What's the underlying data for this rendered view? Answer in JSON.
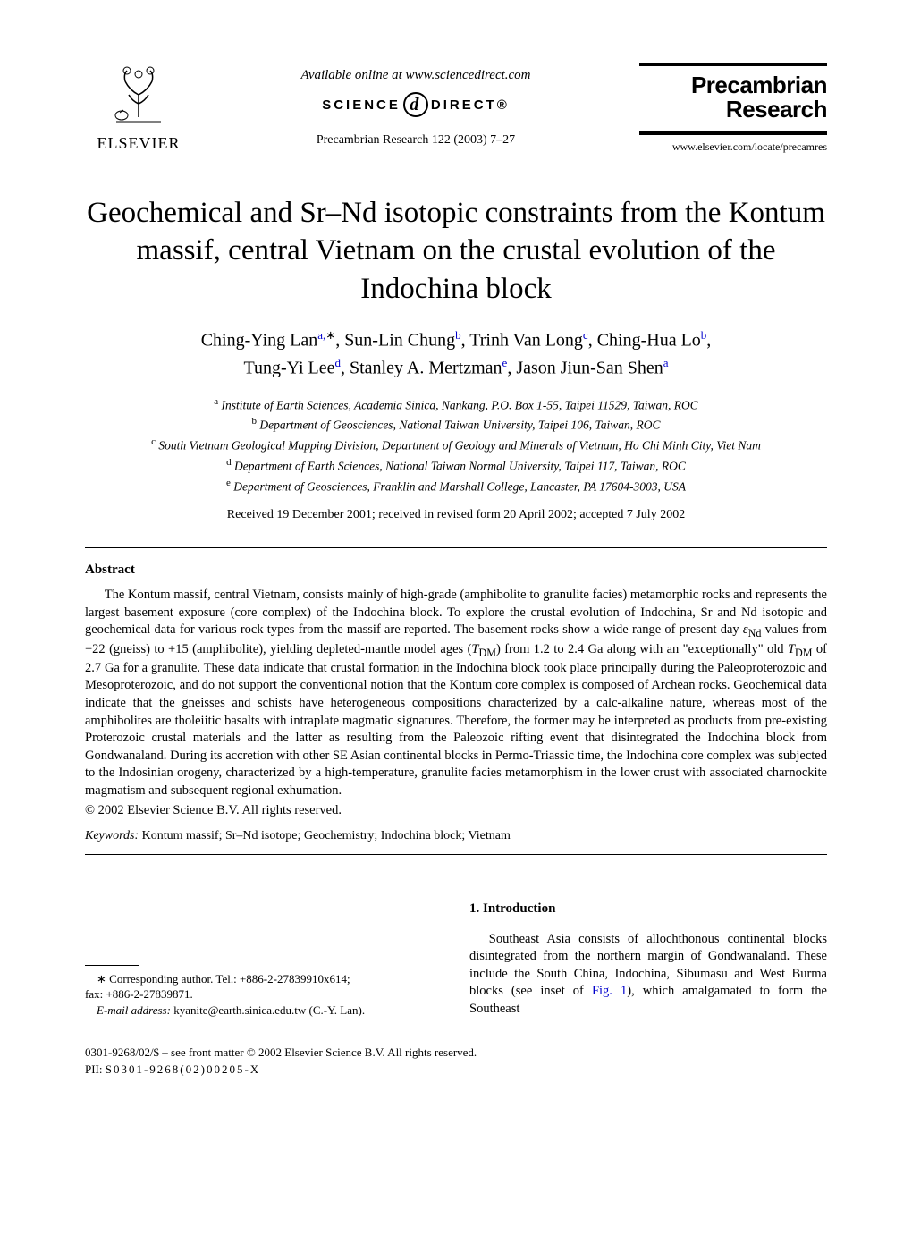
{
  "header": {
    "publisher": "ELSEVIER",
    "available_online": "Available online at www.sciencedirect.com",
    "science_label_left": "SCIENCE",
    "science_label_right": "DIRECT®",
    "citation": "Precambrian Research 122 (2003) 7–27",
    "journal_name_line1": "Precambrian",
    "journal_name_line2": "Research",
    "journal_url": "www.elsevier.com/locate/precamres"
  },
  "title": "Geochemical and Sr–Nd isotopic constraints from the Kontum massif, central Vietnam on the crustal evolution of the Indochina block",
  "authors": {
    "line1_html": "Ching-Ying Lan<sup>a,</sup><sup class=\"ast\">∗</sup>, Sun-Lin Chung<sup>b</sup>, Trinh Van Long<sup>c</sup>, Ching-Hua Lo<sup>b</sup>,",
    "line2_html": "Tung-Yi Lee<sup>d</sup>, Stanley A. Mertzman<sup>e</sup>, Jason Jiun-San Shen<sup>a</sup>"
  },
  "affiliations": [
    {
      "sup": "a",
      "text": "Institute of Earth Sciences, Academia Sinica, Nankang, P.O. Box 1-55, Taipei 11529, Taiwan, ROC"
    },
    {
      "sup": "b",
      "text": "Department of Geosciences, National Taiwan University, Taipei 106, Taiwan, ROC"
    },
    {
      "sup": "c",
      "text": "South Vietnam Geological Mapping Division, Department of Geology and Minerals of Vietnam, Ho Chi Minh City, Viet Nam"
    },
    {
      "sup": "d",
      "text": "Department of Earth Sciences, National Taiwan Normal University, Taipei 117, Taiwan, ROC"
    },
    {
      "sup": "e",
      "text": "Department of Geosciences, Franklin and Marshall College, Lancaster, PA 17604-3003, USA"
    }
  ],
  "received": "Received 19 December 2001; received in revised form 20 April 2002; accepted 7 July 2002",
  "abstract": {
    "heading": "Abstract",
    "body_html": "The Kontum massif, central Vietnam, consists mainly of high-grade (amphibolite to granulite facies) metamorphic rocks and represents the largest basement exposure (core complex) of the Indochina block. To explore the crustal evolution of Indochina, Sr and Nd isotopic and geochemical data for various rock types from the massif are reported. The basement rocks show a wide range of present day <i>ε</i><sub>Nd</sub> values from −22 (gneiss) to +15 (amphibolite), yielding depleted-mantle model ages (<i>T</i><sub>DM</sub>) from 1.2 to 2.4 Ga along with an \"exceptionally\" old <i>T</i><sub>DM</sub> of 2.7 Ga for a granulite. These data indicate that crustal formation in the Indochina block took place principally during the Paleoproterozoic and Mesoproterozoic, and do not support the conventional notion that the Kontum core complex is composed of Archean rocks. Geochemical data indicate that the gneisses and schists have heterogeneous compositions characterized by a calc-alkaline nature, whereas most of the amphibolites are tholeiitic basalts with intraplate magmatic signatures. Therefore, the former may be interpreted as products from pre-existing Proterozoic crustal materials and the latter as resulting from the Paleozoic rifting event that disintegrated the Indochina block from Gondwanaland. During its accretion with other SE Asian continental blocks in Permo-Triassic time, the Indochina core complex was subjected to the Indosinian orogeny, characterized by a high-temperature, granulite facies metamorphism in the lower crust with associated charnockite magmatism and subsequent regional exhumation.",
    "copyright": "© 2002 Elsevier Science B.V. All rights reserved."
  },
  "keywords": {
    "label": "Keywords:",
    "text": "Kontum massif; Sr–Nd isotope; Geochemistry; Indochina block; Vietnam"
  },
  "footnote": {
    "corr_line1": "∗ Corresponding author. Tel.: +886-2-27839910x614;",
    "corr_line2": "fax: +886-2-27839871.",
    "email_label": "E-mail address:",
    "email_value": "kyanite@earth.sinica.edu.tw (C.-Y. Lan)."
  },
  "introduction": {
    "heading": "1.  Introduction",
    "para_html": "Southeast Asia consists of allochthonous continental blocks disintegrated from the northern margin of Gondwanaland. These include the South China, Indochina, Sibumasu and West Burma blocks (see inset of <a class=\"ref-link\" href=\"#\">Fig. 1</a>), which amalgamated to form the Southeast"
  },
  "pii": {
    "line1": "0301-9268/02/$ – see front matter © 2002 Elsevier Science B.V. All rights reserved.",
    "line2": "PII: S0301-9268(02)00205-X"
  },
  "colors": {
    "link_color": "#0000cc",
    "text_color": "#000000",
    "background": "#ffffff"
  }
}
